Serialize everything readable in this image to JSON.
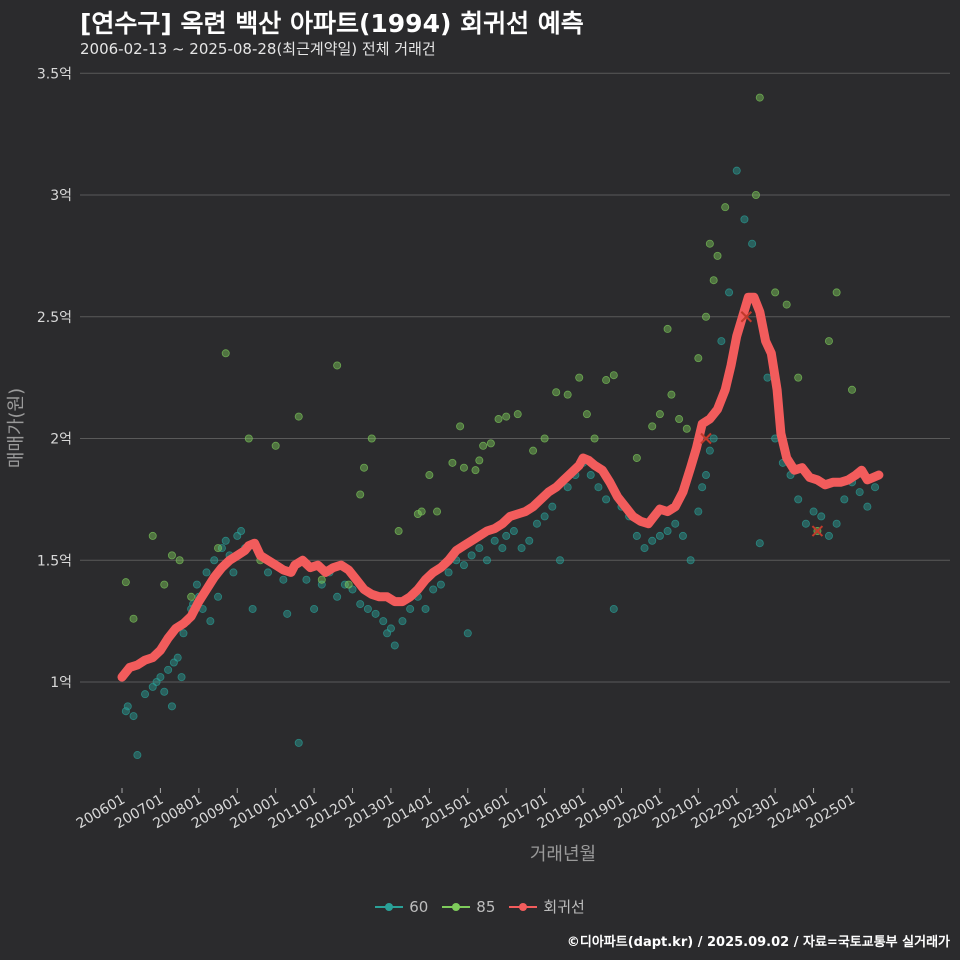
{
  "title": "[연수구] 옥련 백산 아파트(1994) 회귀선 예측",
  "subtitle": "2006-02-13 ~ 2025-08-28(최근계약일) 전체 거래건",
  "caption": "©디아파트(dapt.kr) / 2025.09.02 / 자료=국토교통부 실거래가",
  "colors": {
    "background": "#2b2b2d",
    "grid": "#5a5a5a",
    "s60": "#2aa198",
    "s85": "#7ecb5b",
    "reg": "#f25c5c"
  },
  "chart_data": {
    "type": "scatter",
    "xlabel": "거래년월",
    "ylabel": "매매가(원)",
    "ylim": [
      0.55,
      3.58
    ],
    "yunit": "억",
    "yticks": [
      1,
      1.5,
      2,
      2.5,
      3,
      3.5
    ],
    "ytick_labels": [
      "1억",
      "1.5억",
      "2억",
      "2.5억",
      "3억",
      "3.5억"
    ],
    "xlim": [
      2005.75,
      2026.1
    ],
    "xticks": [
      2006,
      2007,
      2008,
      2009,
      2010,
      2011,
      2012,
      2013,
      2014,
      2015,
      2016,
      2017,
      2018,
      2019,
      2020,
      2021,
      2022,
      2023,
      2024,
      2025
    ],
    "xtick_labels": [
      "200601",
      "200701",
      "200801",
      "200901",
      "201001",
      "201101",
      "201201",
      "201301",
      "201401",
      "201501",
      "201601",
      "201701",
      "201801",
      "201901",
      "202001",
      "202101",
      "202201",
      "202301",
      "202401",
      "202501"
    ],
    "legend": {
      "position": "bottom",
      "entries": [
        "60",
        "85",
        "회귀선"
      ]
    },
    "series": [
      {
        "name": "60",
        "color": "#2aa198",
        "points": [
          [
            2006.1,
            0.88
          ],
          [
            2006.15,
            0.9
          ],
          [
            2006.3,
            0.86
          ],
          [
            2006.4,
            0.7
          ],
          [
            2006.6,
            0.95
          ],
          [
            2006.8,
            0.98
          ],
          [
            2006.9,
            1.0
          ],
          [
            2007.0,
            1.02
          ],
          [
            2007.1,
            0.96
          ],
          [
            2007.2,
            1.05
          ],
          [
            2007.3,
            0.9
          ],
          [
            2007.35,
            1.08
          ],
          [
            2007.45,
            1.1
          ],
          [
            2007.55,
            1.02
          ],
          [
            2007.6,
            1.2
          ],
          [
            2007.7,
            1.25
          ],
          [
            2007.8,
            1.3
          ],
          [
            2007.85,
            1.32
          ],
          [
            2007.95,
            1.4
          ],
          [
            2008.0,
            1.35
          ],
          [
            2008.1,
            1.3
          ],
          [
            2008.2,
            1.45
          ],
          [
            2008.3,
            1.25
          ],
          [
            2008.4,
            1.5
          ],
          [
            2008.5,
            1.35
          ],
          [
            2008.6,
            1.55
          ],
          [
            2008.7,
            1.58
          ],
          [
            2008.8,
            1.52
          ],
          [
            2008.9,
            1.45
          ],
          [
            2009.0,
            1.6
          ],
          [
            2009.1,
            1.62
          ],
          [
            2009.2,
            1.55
          ],
          [
            2009.4,
            1.3
          ],
          [
            2009.6,
            1.52
          ],
          [
            2009.8,
            1.45
          ],
          [
            2010.0,
            1.48
          ],
          [
            2010.2,
            1.42
          ],
          [
            2010.3,
            1.28
          ],
          [
            2010.6,
            0.75
          ],
          [
            2010.8,
            1.42
          ],
          [
            2011.0,
            1.3
          ],
          [
            2011.2,
            1.4
          ],
          [
            2011.4,
            1.45
          ],
          [
            2011.6,
            1.35
          ],
          [
            2011.8,
            1.4
          ],
          [
            2012.0,
            1.38
          ],
          [
            2012.2,
            1.32
          ],
          [
            2012.4,
            1.3
          ],
          [
            2012.6,
            1.28
          ],
          [
            2012.8,
            1.25
          ],
          [
            2012.9,
            1.2
          ],
          [
            2013.0,
            1.22
          ],
          [
            2013.1,
            1.15
          ],
          [
            2013.3,
            1.25
          ],
          [
            2013.5,
            1.3
          ],
          [
            2013.7,
            1.35
          ],
          [
            2013.9,
            1.3
          ],
          [
            2014.1,
            1.38
          ],
          [
            2014.3,
            1.4
          ],
          [
            2014.5,
            1.45
          ],
          [
            2014.7,
            1.5
          ],
          [
            2014.9,
            1.48
          ],
          [
            2015.0,
            1.2
          ],
          [
            2015.1,
            1.52
          ],
          [
            2015.3,
            1.55
          ],
          [
            2015.5,
            1.5
          ],
          [
            2015.7,
            1.58
          ],
          [
            2015.9,
            1.55
          ],
          [
            2016.0,
            1.6
          ],
          [
            2016.2,
            1.62
          ],
          [
            2016.4,
            1.55
          ],
          [
            2016.6,
            1.58
          ],
          [
            2016.8,
            1.65
          ],
          [
            2017.0,
            1.68
          ],
          [
            2017.2,
            1.72
          ],
          [
            2017.4,
            1.5
          ],
          [
            2017.6,
            1.8
          ],
          [
            2017.8,
            1.85
          ],
          [
            2018.0,
            1.9
          ],
          [
            2018.2,
            1.85
          ],
          [
            2018.4,
            1.8
          ],
          [
            2018.6,
            1.75
          ],
          [
            2018.8,
            1.3
          ],
          [
            2019.0,
            1.72
          ],
          [
            2019.2,
            1.68
          ],
          [
            2019.4,
            1.6
          ],
          [
            2019.6,
            1.55
          ],
          [
            2019.8,
            1.58
          ],
          [
            2020.0,
            1.6
          ],
          [
            2020.2,
            1.62
          ],
          [
            2020.4,
            1.65
          ],
          [
            2020.6,
            1.6
          ],
          [
            2020.8,
            1.5
          ],
          [
            2021.0,
            1.7
          ],
          [
            2021.1,
            1.8
          ],
          [
            2021.2,
            1.85
          ],
          [
            2021.3,
            1.95
          ],
          [
            2021.4,
            2.0
          ],
          [
            2021.6,
            2.4
          ],
          [
            2021.8,
            2.6
          ],
          [
            2022.0,
            3.1
          ],
          [
            2022.2,
            2.9
          ],
          [
            2022.4,
            2.8
          ],
          [
            2022.6,
            1.57
          ],
          [
            2022.8,
            2.25
          ],
          [
            2023.0,
            2.0
          ],
          [
            2023.2,
            1.9
          ],
          [
            2023.4,
            1.85
          ],
          [
            2023.6,
            1.75
          ],
          [
            2023.8,
            1.65
          ],
          [
            2024.0,
            1.7
          ],
          [
            2024.2,
            1.68
          ],
          [
            2024.4,
            1.6
          ],
          [
            2024.6,
            1.65
          ],
          [
            2024.8,
            1.75
          ],
          [
            2025.0,
            1.82
          ],
          [
            2025.2,
            1.78
          ],
          [
            2025.4,
            1.72
          ],
          [
            2025.6,
            1.8
          ]
        ]
      },
      {
        "name": "85",
        "color": "#7ecb5b",
        "points": [
          [
            2006.1,
            1.41
          ],
          [
            2006.3,
            1.26
          ],
          [
            2006.8,
            1.6
          ],
          [
            2007.1,
            1.4
          ],
          [
            2007.3,
            1.52
          ],
          [
            2007.5,
            1.5
          ],
          [
            2007.8,
            1.35
          ],
          [
            2008.5,
            1.55
          ],
          [
            2008.7,
            2.35
          ],
          [
            2009.3,
            2.0
          ],
          [
            2009.6,
            1.5
          ],
          [
            2010.0,
            1.97
          ],
          [
            2010.6,
            2.09
          ],
          [
            2011.2,
            1.42
          ],
          [
            2011.6,
            2.3
          ],
          [
            2011.9,
            1.4
          ],
          [
            2012.2,
            1.77
          ],
          [
            2012.3,
            1.88
          ],
          [
            2012.5,
            2.0
          ],
          [
            2013.2,
            1.62
          ],
          [
            2013.7,
            1.69
          ],
          [
            2013.8,
            1.7
          ],
          [
            2014.0,
            1.85
          ],
          [
            2014.2,
            1.7
          ],
          [
            2014.6,
            1.9
          ],
          [
            2014.8,
            2.05
          ],
          [
            2014.9,
            1.88
          ],
          [
            2015.2,
            1.87
          ],
          [
            2015.3,
            1.91
          ],
          [
            2015.4,
            1.97
          ],
          [
            2015.6,
            1.98
          ],
          [
            2015.8,
            2.08
          ],
          [
            2016.0,
            2.09
          ],
          [
            2016.3,
            2.1
          ],
          [
            2016.7,
            1.95
          ],
          [
            2017.0,
            2.0
          ],
          [
            2017.3,
            2.19
          ],
          [
            2017.6,
            2.18
          ],
          [
            2017.9,
            2.25
          ],
          [
            2018.1,
            2.1
          ],
          [
            2018.3,
            2.0
          ],
          [
            2018.6,
            2.24
          ],
          [
            2018.8,
            2.26
          ],
          [
            2019.4,
            1.92
          ],
          [
            2019.8,
            2.05
          ],
          [
            2020.0,
            2.1
          ],
          [
            2020.2,
            2.45
          ],
          [
            2020.3,
            2.18
          ],
          [
            2020.5,
            2.08
          ],
          [
            2020.7,
            2.04
          ],
          [
            2021.0,
            2.33
          ],
          [
            2021.2,
            2.5
          ],
          [
            2021.3,
            2.8
          ],
          [
            2021.4,
            2.65
          ],
          [
            2021.5,
            2.75
          ],
          [
            2021.7,
            2.95
          ],
          [
            2022.5,
            3.0
          ],
          [
            2022.6,
            3.4
          ],
          [
            2023.0,
            2.6
          ],
          [
            2023.3,
            2.55
          ],
          [
            2023.6,
            2.25
          ],
          [
            2024.1,
            1.62
          ],
          [
            2024.4,
            2.4
          ],
          [
            2024.6,
            2.6
          ],
          [
            2025.0,
            2.2
          ]
        ]
      },
      {
        "name": "회귀선",
        "color": "#f25c5c",
        "points": [
          [
            2006.0,
            1.02
          ],
          [
            2006.2,
            1.06
          ],
          [
            2006.4,
            1.07
          ],
          [
            2006.6,
            1.09
          ],
          [
            2006.8,
            1.1
          ],
          [
            2007.0,
            1.13
          ],
          [
            2007.2,
            1.18
          ],
          [
            2007.4,
            1.22
          ],
          [
            2007.6,
            1.24
          ],
          [
            2007.8,
            1.27
          ],
          [
            2008.0,
            1.33
          ],
          [
            2008.2,
            1.38
          ],
          [
            2008.4,
            1.43
          ],
          [
            2008.6,
            1.47
          ],
          [
            2008.8,
            1.5
          ],
          [
            2009.0,
            1.52
          ],
          [
            2009.2,
            1.54
          ],
          [
            2009.3,
            1.56
          ],
          [
            2009.45,
            1.57
          ],
          [
            2009.6,
            1.52
          ],
          [
            2009.8,
            1.5
          ],
          [
            2010.0,
            1.48
          ],
          [
            2010.2,
            1.46
          ],
          [
            2010.4,
            1.45
          ],
          [
            2010.5,
            1.48
          ],
          [
            2010.7,
            1.5
          ],
          [
            2010.9,
            1.47
          ],
          [
            2011.1,
            1.48
          ],
          [
            2011.3,
            1.45
          ],
          [
            2011.5,
            1.47
          ],
          [
            2011.7,
            1.48
          ],
          [
            2011.9,
            1.46
          ],
          [
            2012.1,
            1.42
          ],
          [
            2012.3,
            1.38
          ],
          [
            2012.5,
            1.36
          ],
          [
            2012.7,
            1.35
          ],
          [
            2012.9,
            1.35
          ],
          [
            2013.1,
            1.33
          ],
          [
            2013.3,
            1.33
          ],
          [
            2013.5,
            1.35
          ],
          [
            2013.7,
            1.38
          ],
          [
            2013.9,
            1.42
          ],
          [
            2014.1,
            1.45
          ],
          [
            2014.3,
            1.47
          ],
          [
            2014.5,
            1.5
          ],
          [
            2014.7,
            1.54
          ],
          [
            2014.9,
            1.56
          ],
          [
            2015.1,
            1.58
          ],
          [
            2015.3,
            1.6
          ],
          [
            2015.5,
            1.62
          ],
          [
            2015.7,
            1.63
          ],
          [
            2015.9,
            1.65
          ],
          [
            2016.1,
            1.68
          ],
          [
            2016.3,
            1.69
          ],
          [
            2016.5,
            1.7
          ],
          [
            2016.7,
            1.72
          ],
          [
            2016.9,
            1.75
          ],
          [
            2017.1,
            1.78
          ],
          [
            2017.3,
            1.8
          ],
          [
            2017.5,
            1.83
          ],
          [
            2017.7,
            1.86
          ],
          [
            2017.9,
            1.89
          ],
          [
            2018.0,
            1.92
          ],
          [
            2018.15,
            1.91
          ],
          [
            2018.3,
            1.89
          ],
          [
            2018.5,
            1.87
          ],
          [
            2018.7,
            1.82
          ],
          [
            2018.9,
            1.76
          ],
          [
            2019.1,
            1.72
          ],
          [
            2019.3,
            1.68
          ],
          [
            2019.5,
            1.66
          ],
          [
            2019.7,
            1.65
          ],
          [
            2019.85,
            1.68
          ],
          [
            2020.0,
            1.71
          ],
          [
            2020.2,
            1.7
          ],
          [
            2020.4,
            1.72
          ],
          [
            2020.6,
            1.78
          ],
          [
            2020.8,
            1.88
          ],
          [
            2020.95,
            1.96
          ],
          [
            2021.1,
            2.06
          ],
          [
            2021.3,
            2.08
          ],
          [
            2021.5,
            2.12
          ],
          [
            2021.7,
            2.2
          ],
          [
            2021.85,
            2.3
          ],
          [
            2022.0,
            2.42
          ],
          [
            2022.15,
            2.5
          ],
          [
            2022.3,
            2.58
          ],
          [
            2022.45,
            2.58
          ],
          [
            2022.6,
            2.52
          ],
          [
            2022.75,
            2.4
          ],
          [
            2022.9,
            2.35
          ],
          [
            2023.05,
            2.2
          ],
          [
            2023.15,
            2.02
          ],
          [
            2023.3,
            1.92
          ],
          [
            2023.5,
            1.87
          ],
          [
            2023.7,
            1.88
          ],
          [
            2023.9,
            1.84
          ],
          [
            2024.1,
            1.83
          ],
          [
            2024.3,
            1.81
          ],
          [
            2024.5,
            1.82
          ],
          [
            2024.7,
            1.82
          ],
          [
            2024.9,
            1.83
          ],
          [
            2025.1,
            1.85
          ],
          [
            2025.25,
            1.87
          ],
          [
            2025.4,
            1.83
          ],
          [
            2025.55,
            1.84
          ],
          [
            2025.7,
            1.85
          ]
        ]
      }
    ],
    "highlight_points": [
      [
        2021.2,
        2.0
      ],
      [
        2022.25,
        2.5
      ],
      [
        2024.1,
        1.62
      ]
    ]
  }
}
